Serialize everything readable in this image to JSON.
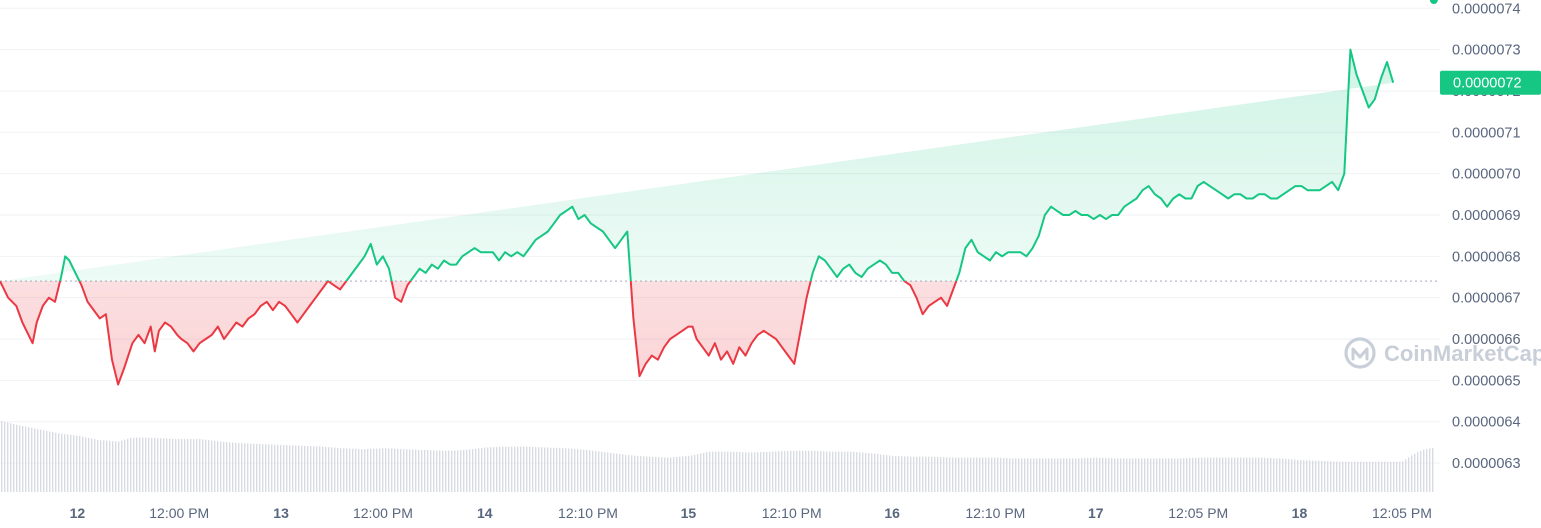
{
  "watermark": {
    "text": "CoinMarketCap",
    "icon": "coinmarketcap-logo-icon"
  },
  "colors": {
    "up": "#16c784",
    "down": "#ea3943",
    "baseline": "#b5bcc6",
    "axis_text": "#58667e",
    "volume": "#d8dce2"
  },
  "current_price": {
    "label": "0.0000072",
    "value": 7.22e-06
  },
  "chart_data": {
    "type": "line",
    "baseline": 6.74e-06,
    "ylim": [
      6.23e-06,
      7.42e-06
    ],
    "yticks": [
      "0.0000063",
      "0.0000064",
      "0.0000065",
      "0.0000066",
      "0.0000067",
      "0.0000068",
      "0.0000069",
      "0.0000070",
      "0.0000071",
      "0.0000072",
      "0.0000073",
      "0.0000074"
    ],
    "ytick_values": [
      6.3e-06,
      6.4e-06,
      6.5e-06,
      6.6e-06,
      6.7e-06,
      6.8e-06,
      6.9e-06,
      7e-06,
      7.1e-06,
      7.2e-06,
      7.3e-06,
      7.4e-06
    ],
    "x_domain_days": [
      11.62,
      18.69
    ],
    "xticks": [
      {
        "label": "12",
        "t": 12.0,
        "day": true
      },
      {
        "label": "12:00 PM",
        "t": 12.5,
        "day": false
      },
      {
        "label": "13",
        "t": 13.0,
        "day": true
      },
      {
        "label": "12:00 PM",
        "t": 13.5,
        "day": false
      },
      {
        "label": "14",
        "t": 14.0,
        "day": true
      },
      {
        "label": "12:10 PM",
        "t": 14.507,
        "day": false
      },
      {
        "label": "15",
        "t": 15.0,
        "day": true
      },
      {
        "label": "12:10 PM",
        "t": 15.507,
        "day": false
      },
      {
        "label": "16",
        "t": 16.0,
        "day": true
      },
      {
        "label": "12:10 PM",
        "t": 16.507,
        "day": false
      },
      {
        "label": "17",
        "t": 17.0,
        "day": true
      },
      {
        "label": "12:05 PM",
        "t": 17.503,
        "day": false
      },
      {
        "label": "18",
        "t": 18.0,
        "day": true
      },
      {
        "label": "12:05 PM",
        "t": 18.503,
        "day": false
      }
    ],
    "series": [
      {
        "t": [
          11.62,
          11.66,
          11.7,
          11.73,
          11.75,
          11.78,
          11.8,
          11.83,
          11.86,
          11.89,
          11.92,
          11.94,
          11.96,
          11.99,
          12.02,
          12.05,
          12.08,
          12.11,
          12.14,
          12.17,
          12.2,
          12.23,
          12.25,
          12.27,
          12.3,
          12.33,
          12.36,
          12.38,
          12.4,
          12.43,
          12.46,
          12.49,
          12.51,
          12.54,
          12.57,
          12.6,
          12.63,
          12.66,
          12.69,
          12.72,
          12.75,
          12.78,
          12.81,
          12.84,
          12.87,
          12.9,
          12.93,
          12.96,
          12.99,
          13.02,
          13.05,
          13.08,
          13.11,
          13.14,
          13.17,
          13.2,
          13.23,
          13.26,
          13.29,
          13.32,
          13.35,
          13.38,
          13.41,
          13.44,
          13.47,
          13.5,
          13.53,
          13.56,
          13.59,
          13.62,
          13.65,
          13.68,
          13.71,
          13.74,
          13.77,
          13.8,
          13.83,
          13.86,
          13.89,
          13.92,
          13.95,
          13.98,
          14.01,
          14.04,
          14.07,
          14.1,
          14.13,
          14.16,
          14.19,
          14.22,
          14.25,
          14.28,
          14.31,
          14.34,
          14.37,
          14.4,
          14.43,
          14.46,
          14.49,
          14.52,
          14.55,
          14.58,
          14.61,
          14.64,
          14.67,
          14.7,
          14.73,
          14.76,
          14.79,
          14.82,
          14.85,
          14.88,
          14.91,
          14.94,
          14.97,
          15.0,
          15.02,
          15.04,
          15.07,
          15.1,
          15.13,
          15.16,
          15.19,
          15.22,
          15.25,
          15.28,
          15.31,
          15.34,
          15.37,
          15.4,
          15.43,
          15.46,
          15.49,
          15.52,
          15.55,
          15.58,
          15.61,
          15.64,
          15.67,
          15.7,
          15.73,
          15.76,
          15.79,
          15.82,
          15.85,
          15.88,
          15.91,
          15.94,
          15.97,
          16.0,
          16.03,
          16.06,
          16.09,
          16.12,
          16.15,
          16.18,
          16.21,
          16.24,
          16.27,
          16.3,
          16.33,
          16.36,
          16.39,
          16.42,
          16.45,
          16.48,
          16.51,
          16.54,
          16.57,
          16.6,
          16.63,
          16.66,
          16.69,
          16.72,
          16.75,
          16.78,
          16.81,
          16.84,
          16.87,
          16.9,
          16.93,
          16.96,
          16.99,
          17.02,
          17.05,
          17.08,
          17.11,
          17.14,
          17.17,
          17.2,
          17.23,
          17.26,
          17.29,
          17.32,
          17.35,
          17.38,
          17.41,
          17.44,
          17.47,
          17.5,
          17.53,
          17.56,
          17.59,
          17.62,
          17.65,
          17.68,
          17.71,
          17.74,
          17.77,
          17.8,
          17.83,
          17.86,
          17.89,
          17.92,
          17.95,
          17.98,
          18.01,
          18.04,
          18.07,
          18.1,
          18.13,
          18.16,
          18.19,
          18.22,
          18.25,
          18.28,
          18.31,
          18.34,
          18.37,
          18.4,
          18.43,
          18.46,
          18.48,
          18.5,
          18.52,
          18.54,
          18.56,
          18.58,
          18.6,
          18.62,
          18.64,
          18.66
        ],
        "v": [
          6.74e-06,
          6.7e-06,
          6.68e-06,
          6.64e-06,
          6.62e-06,
          6.59e-06,
          6.64e-06,
          6.68e-06,
          6.7e-06,
          6.69e-06,
          6.75e-06,
          6.8e-06,
          6.79e-06,
          6.76e-06,
          6.73e-06,
          6.69e-06,
          6.67e-06,
          6.65e-06,
          6.66e-06,
          6.55e-06,
          6.49e-06,
          6.53e-06,
          6.56e-06,
          6.59e-06,
          6.61e-06,
          6.59e-06,
          6.63e-06,
          6.57e-06,
          6.62e-06,
          6.64e-06,
          6.63e-06,
          6.61e-06,
          6.6e-06,
          6.59e-06,
          6.57e-06,
          6.59e-06,
          6.6e-06,
          6.61e-06,
          6.63e-06,
          6.6e-06,
          6.62e-06,
          6.64e-06,
          6.63e-06,
          6.65e-06,
          6.66e-06,
          6.68e-06,
          6.69e-06,
          6.67e-06,
          6.69e-06,
          6.68e-06,
          6.66e-06,
          6.64e-06,
          6.66e-06,
          6.68e-06,
          6.7e-06,
          6.72e-06,
          6.74e-06,
          6.73e-06,
          6.72e-06,
          6.74e-06,
          6.76e-06,
          6.78e-06,
          6.8e-06,
          6.83e-06,
          6.78e-06,
          6.8e-06,
          6.77e-06,
          6.7e-06,
          6.69e-06,
          6.73e-06,
          6.75e-06,
          6.77e-06,
          6.76e-06,
          6.78e-06,
          6.77e-06,
          6.79e-06,
          6.78e-06,
          6.78e-06,
          6.8e-06,
          6.81e-06,
          6.82e-06,
          6.81e-06,
          6.81e-06,
          6.81e-06,
          6.79e-06,
          6.81e-06,
          6.8e-06,
          6.81e-06,
          6.8e-06,
          6.82e-06,
          6.84e-06,
          6.85e-06,
          6.86e-06,
          6.88e-06,
          6.9e-06,
          6.91e-06,
          6.92e-06,
          6.89e-06,
          6.9e-06,
          6.88e-06,
          6.87e-06,
          6.86e-06,
          6.84e-06,
          6.82e-06,
          6.84e-06,
          6.86e-06,
          6.65e-06,
          6.51e-06,
          6.54e-06,
          6.56e-06,
          6.55e-06,
          6.58e-06,
          6.6e-06,
          6.61e-06,
          6.62e-06,
          6.63e-06,
          6.63e-06,
          6.6e-06,
          6.58e-06,
          6.56e-06,
          6.59e-06,
          6.55e-06,
          6.57e-06,
          6.54e-06,
          6.58e-06,
          6.56e-06,
          6.59e-06,
          6.61e-06,
          6.62e-06,
          6.61e-06,
          6.6e-06,
          6.58e-06,
          6.56e-06,
          6.54e-06,
          6.62e-06,
          6.7e-06,
          6.76e-06,
          6.8e-06,
          6.79e-06,
          6.77e-06,
          6.75e-06,
          6.77e-06,
          6.78e-06,
          6.76e-06,
          6.75e-06,
          6.77e-06,
          6.78e-06,
          6.79e-06,
          6.78e-06,
          6.76e-06,
          6.76e-06,
          6.74e-06,
          6.73e-06,
          6.7e-06,
          6.66e-06,
          6.68e-06,
          6.69e-06,
          6.7e-06,
          6.68e-06,
          6.72e-06,
          6.76e-06,
          6.82e-06,
          6.84e-06,
          6.81e-06,
          6.8e-06,
          6.79e-06,
          6.81e-06,
          6.8e-06,
          6.81e-06,
          6.81e-06,
          6.81e-06,
          6.8e-06,
          6.82e-06,
          6.85e-06,
          6.9e-06,
          6.92e-06,
          6.91e-06,
          6.9e-06,
          6.9e-06,
          6.91e-06,
          6.9e-06,
          6.9e-06,
          6.89e-06,
          6.9e-06,
          6.89e-06,
          6.9e-06,
          6.9e-06,
          6.92e-06,
          6.93e-06,
          6.94e-06,
          6.96e-06,
          6.97e-06,
          6.95e-06,
          6.94e-06,
          6.92e-06,
          6.94e-06,
          6.95e-06,
          6.94e-06,
          6.94e-06,
          6.97e-06,
          6.98e-06,
          6.97e-06,
          6.96e-06,
          6.95e-06,
          6.94e-06,
          6.95e-06,
          6.95e-06,
          6.94e-06,
          6.94e-06,
          6.95e-06,
          6.95e-06,
          6.94e-06,
          6.94e-06,
          6.95e-06,
          6.96e-06,
          6.97e-06,
          6.97e-06,
          6.96e-06,
          6.96e-06,
          6.96e-06,
          6.97e-06,
          6.98e-06,
          6.96e-06,
          7e-06,
          7.3e-06,
          7.24e-06,
          7.2e-06,
          7.16e-06,
          7.18e-06,
          7.23e-06,
          7.27e-06,
          7.22e-06
        ]
      }
    ],
    "volume": {
      "t": [
        11.62,
        11.7,
        11.8,
        11.9,
        12.0,
        12.1,
        12.2,
        12.25,
        12.3,
        12.4,
        12.5,
        12.6,
        12.7,
        12.8,
        12.9,
        13.0,
        13.1,
        13.2,
        13.3,
        13.4,
        13.5,
        13.6,
        13.7,
        13.8,
        13.9,
        14.0,
        14.1,
        14.2,
        14.3,
        14.4,
        14.5,
        14.6,
        14.7,
        14.8,
        14.9,
        15.0,
        15.1,
        15.2,
        15.3,
        15.4,
        15.5,
        15.6,
        15.7,
        15.8,
        15.9,
        16.0,
        16.1,
        16.2,
        16.3,
        16.4,
        16.5,
        16.6,
        16.7,
        16.8,
        16.9,
        17.0,
        17.1,
        17.2,
        17.3,
        17.4,
        17.5,
        17.6,
        17.7,
        17.8,
        17.9,
        18.0,
        18.1,
        18.2,
        18.3,
        18.4,
        18.5,
        18.55,
        18.6,
        18.66
      ],
      "h": [
        0.85,
        0.8,
        0.75,
        0.7,
        0.67,
        0.62,
        0.6,
        0.64,
        0.65,
        0.64,
        0.63,
        0.63,
        0.6,
        0.58,
        0.57,
        0.56,
        0.55,
        0.54,
        0.52,
        0.51,
        0.52,
        0.51,
        0.5,
        0.49,
        0.5,
        0.53,
        0.54,
        0.54,
        0.53,
        0.52,
        0.5,
        0.47,
        0.44,
        0.42,
        0.41,
        0.43,
        0.48,
        0.48,
        0.47,
        0.48,
        0.49,
        0.49,
        0.48,
        0.48,
        0.46,
        0.43,
        0.42,
        0.42,
        0.41,
        0.41,
        0.41,
        0.4,
        0.4,
        0.4,
        0.4,
        0.41,
        0.4,
        0.4,
        0.4,
        0.4,
        0.41,
        0.41,
        0.41,
        0.41,
        0.4,
        0.38,
        0.37,
        0.36,
        0.36,
        0.36,
        0.36,
        0.44,
        0.5,
        0.53
      ]
    }
  }
}
